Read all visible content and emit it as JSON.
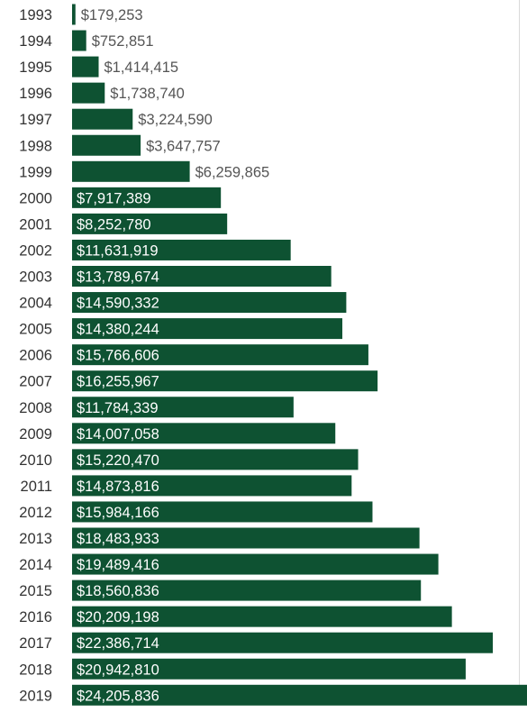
{
  "chart_data": {
    "type": "bar",
    "orientation": "horizontal",
    "title": "",
    "xlabel": "",
    "ylabel": "",
    "categories": [
      "1993",
      "1994",
      "1995",
      "1996",
      "1997",
      "1998",
      "1999",
      "2000",
      "2001",
      "2002",
      "2003",
      "2004",
      "2005",
      "2006",
      "2007",
      "2008",
      "2009",
      "2010",
      "2011",
      "2012",
      "2013",
      "2014",
      "2015",
      "2016",
      "2017",
      "2018",
      "2019"
    ],
    "values": [
      179253,
      752851,
      1414415,
      1738740,
      3224590,
      3647757,
      6259865,
      7917389,
      8252780,
      11631919,
      13789674,
      14590332,
      14380244,
      15766606,
      16255967,
      11784339,
      14007058,
      15220470,
      14873816,
      15984166,
      18483933,
      19489416,
      18560836,
      20209198,
      22386714,
      20942810,
      24205836
    ],
    "value_labels": [
      "$179,253",
      "$752,851",
      "$1,414,415",
      "$1,738,740",
      "$3,224,590",
      "$3,647,757",
      "$6,259,865",
      "$7,917,389",
      "$8,252,780",
      "$11,631,919",
      "$13,789,674",
      "$14,590,332",
      "$14,380,244",
      "$15,766,606",
      "$16,255,967",
      "$11,784,339",
      "$14,007,058",
      "$15,220,470",
      "$14,873,816",
      "$15,984,166",
      "$18,483,933",
      "$19,489,416",
      "$18,560,836",
      "$20,209,198",
      "$22,386,714",
      "$20,942,810",
      "$24,205,836"
    ],
    "xlim": [
      0,
      24205836
    ],
    "grid": false,
    "legend": "none",
    "colors": {
      "bar": "#0e5232",
      "label_inside": "#ffffff",
      "label_outside": "#555555",
      "category_text": "#333333"
    }
  }
}
